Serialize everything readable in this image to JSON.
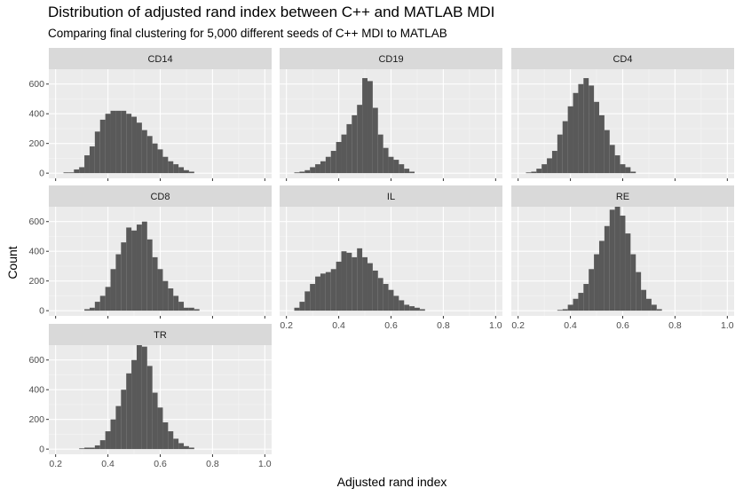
{
  "chart_data": {
    "type": "bar",
    "title": "Distribution of adjusted rand index between C++ and MATLAB MDI",
    "subtitle": "Comparing final clustering for 5,000 different seeds of C++ MDI to MATLAB",
    "xlabel": "Adjusted rand index",
    "ylabel": "Count",
    "xlim": [
      0.2,
      1.0
    ],
    "ylim": [
      0,
      700
    ],
    "x_ticks": [
      "0.2",
      "0.4",
      "0.6",
      "0.8",
      "1.0"
    ],
    "y_ticks": [
      "0",
      "200",
      "400",
      "600"
    ],
    "grid": true,
    "bar_color": "#595959",
    "panel_background": "#ebebeb",
    "strip_background": "#d9d9d9",
    "bin_width": 0.02,
    "bin_start": 0.24,
    "panels": [
      {
        "name": "CD14",
        "values": [
          5,
          5,
          25,
          40,
          120,
          180,
          280,
          360,
          400,
          420,
          420,
          420,
          400,
          380,
          340,
          290,
          250,
          200,
          160,
          110,
          80,
          60,
          40,
          20,
          10,
          0,
          0,
          0,
          0,
          0,
          0,
          0,
          0,
          0,
          0,
          0,
          0,
          0
        ]
      },
      {
        "name": "CD19",
        "values": [
          5,
          10,
          20,
          40,
          60,
          80,
          110,
          150,
          210,
          260,
          330,
          390,
          460,
          640,
          620,
          440,
          260,
          170,
          110,
          90,
          60,
          30,
          10,
          0,
          0,
          0,
          0,
          0,
          0,
          0,
          0,
          0,
          0,
          0,
          0,
          0,
          0,
          0
        ]
      },
      {
        "name": "CD4",
        "values": [
          5,
          10,
          30,
          60,
          100,
          150,
          260,
          350,
          450,
          540,
          600,
          640,
          590,
          480,
          390,
          290,
          190,
          120,
          60,
          40,
          10,
          0,
          0,
          0,
          0,
          0,
          0,
          0,
          0,
          0,
          0,
          0,
          0,
          0,
          0,
          0,
          0,
          0
        ]
      },
      {
        "name": "CD8",
        "values": [
          0,
          0,
          0,
          0,
          10,
          20,
          60,
          100,
          160,
          280,
          380,
          460,
          560,
          540,
          580,
          600,
          480,
          360,
          280,
          200,
          150,
          100,
          60,
          20,
          20,
          10,
          0,
          0,
          0,
          0,
          0,
          0,
          0,
          0,
          0,
          0,
          0,
          0
        ]
      },
      {
        "name": "IL",
        "values": [
          20,
          60,
          130,
          180,
          230,
          250,
          260,
          280,
          330,
          400,
          390,
          360,
          420,
          360,
          320,
          270,
          220,
          180,
          140,
          100,
          70,
          40,
          30,
          20,
          10,
          0,
          0,
          0,
          0,
          0,
          0,
          0,
          0,
          0,
          0,
          0,
          0,
          0
        ]
      },
      {
        "name": "RE",
        "values": [
          0,
          0,
          0,
          0,
          0,
          0,
          5,
          10,
          40,
          80,
          120,
          180,
          280,
          380,
          470,
          570,
          680,
          700,
          640,
          520,
          380,
          260,
          140,
          80,
          40,
          10,
          0,
          0,
          0,
          0,
          0,
          0,
          0,
          0,
          0,
          0,
          0,
          0
        ]
      },
      {
        "name": "TR",
        "values": [
          0,
          0,
          0,
          5,
          10,
          10,
          25,
          60,
          120,
          200,
          290,
          400,
          510,
          600,
          700,
          690,
          560,
          380,
          280,
          180,
          120,
          70,
          40,
          20,
          10,
          0,
          0,
          0,
          0,
          0,
          0,
          0,
          0,
          0,
          0,
          0,
          0,
          0
        ]
      }
    ]
  }
}
